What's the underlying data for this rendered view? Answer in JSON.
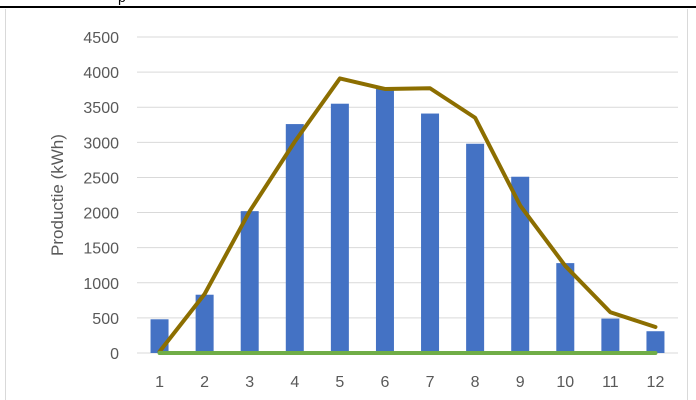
{
  "header": {
    "strip_text": "p"
  },
  "chart_data": {
    "type": "bar",
    "categories": [
      "1",
      "2",
      "3",
      "4",
      "5",
      "6",
      "7",
      "8",
      "9",
      "10",
      "11",
      "12"
    ],
    "series": [
      {
        "type": "bar",
        "color": "#4472c4",
        "values": [
          480,
          830,
          2020,
          3260,
          3550,
          3770,
          3410,
          2980,
          2510,
          1280,
          490,
          310
        ]
      },
      {
        "type": "line",
        "color": "#8c6e00",
        "values": [
          20,
          840,
          2020,
          3010,
          3910,
          3760,
          3770,
          3350,
          2100,
          1240,
          580,
          370
        ]
      },
      {
        "type": "line",
        "color": "#70ad47",
        "values": [
          0,
          0,
          0,
          0,
          0,
          0,
          0,
          0,
          0,
          0,
          0,
          0
        ]
      }
    ],
    "yticks": [
      "0",
      "500",
      "1000",
      "1500",
      "2000",
      "2500",
      "3000",
      "3500",
      "4000",
      "4500"
    ],
    "ylabel": "Productie (kWh)",
    "xlabel": "",
    "ylim": [
      0,
      4500
    ],
    "grid": true,
    "legend": "none"
  }
}
